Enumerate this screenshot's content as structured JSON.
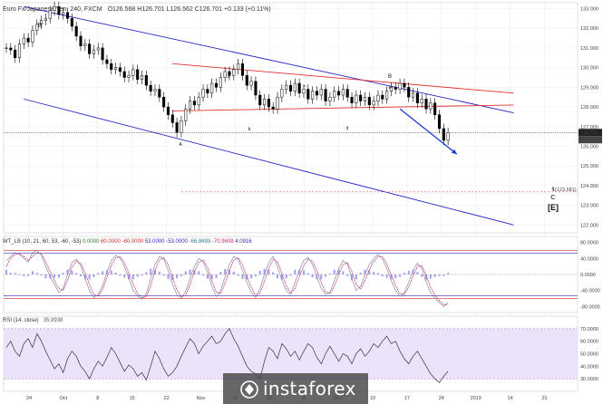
{
  "header": {
    "symbol": "Euro Fx/Japanese Yen, 240, FXCM",
    "ohlc": "O126.568  H126.701  L126.562  C126.701  +0.133 (+0.11%)"
  },
  "price_tags": {
    "last": "126.701",
    "countdown": "03:39:16"
  },
  "target_label": "1(123.681)",
  "wt_header": "WT_LB (10, 21, 60, 53, -60, -53)",
  "wt_values": [
    "0.0000",
    "60.0000",
    "-60.0000",
    "53.0000",
    "-53.0000",
    "-66.8693",
    "-70.9608",
    "4.0916"
  ],
  "rsi_header": "RSI (14, close)",
  "rsi_value": "35.9938",
  "watermark": "instaforex",
  "colors": {
    "candle": "#000000",
    "channel": "#2323c8",
    "triangle": "#e03030",
    "forecast": "#1a3ccf",
    "wt_line": "#c0306a",
    "wt_fill": "#8888e8",
    "rsi_band": "#ece3fb",
    "rsi_line": "#333333"
  },
  "chart_data": [
    {
      "type": "candlestick",
      "panel": "price",
      "x_tick_labels": [
        "24",
        "Oct",
        "8",
        "15",
        "22",
        "Nov",
        "12",
        "19",
        "26",
        "Dec",
        "10",
        "17",
        "24",
        "2019",
        "14",
        "21"
      ],
      "y_ticks": [
        122.0,
        123.0,
        124.0,
        125.0,
        126.0,
        127.0,
        128.0,
        129.0,
        130.0,
        131.0,
        132.0,
        133.0
      ],
      "ylim": [
        121.6,
        133.3
      ],
      "series": [
        {
          "values": [
            131.0,
            130.9,
            130.5,
            131.2,
            131.5,
            131.3,
            131.9,
            132.2,
            132.4,
            132.5,
            132.9,
            133.1,
            132.7,
            132.8,
            132.5,
            132.1,
            131.6,
            131.1,
            131.2,
            130.7,
            130.9,
            131.0,
            130.4,
            130.2,
            129.9,
            130.0,
            129.8,
            129.5,
            129.6,
            129.9,
            129.4,
            129.6,
            129.1,
            128.8,
            128.9,
            128.5,
            128.0,
            127.6,
            127.2,
            126.7,
            127.3,
            127.9,
            128.3,
            128.1,
            128.5,
            128.9,
            128.7,
            129.2,
            129.0,
            129.5,
            129.8,
            129.6,
            129.9,
            130.2,
            129.6,
            129.1,
            129.3,
            128.6,
            128.1,
            128.4,
            128.0,
            127.9,
            128.5,
            128.9,
            129.1,
            128.8,
            129.2,
            128.7,
            128.9,
            128.4,
            128.8,
            128.6,
            128.9,
            128.3,
            128.5,
            128.8,
            128.6,
            128.9,
            128.5,
            128.2,
            128.6,
            128.3,
            128.5,
            128.1,
            128.3,
            128.6,
            128.4,
            128.8,
            129.0,
            128.9,
            129.2,
            129.0,
            128.5,
            128.7,
            128.2,
            128.4,
            127.9,
            128.2,
            127.6,
            126.9,
            126.3,
            126.7
          ]
        }
      ],
      "annotations": [
        "B",
        "a",
        "A",
        "b",
        "c",
        "B",
        "e",
        "d",
        "c",
        "C",
        "[E]"
      ],
      "overlays": {
        "upper_channel": {
          "from": [
            4,
            133.1
          ],
          "to": [
            116,
            127.7
          ]
        },
        "lower_channel": {
          "from": [
            4,
            128.4
          ],
          "to": [
            116,
            122.0
          ]
        },
        "triangle_upper": {
          "from": [
            38,
            130.2
          ],
          "to": [
            116,
            128.7
          ]
        },
        "triangle_lower": {
          "from": [
            38,
            127.8
          ],
          "to": [
            116,
            128.1
          ]
        },
        "forecast_arrow": {
          "from": [
            90,
            127.9
          ],
          "to": [
            103,
            125.6
          ]
        },
        "last_price": 126.701,
        "target_level": 123.681
      }
    },
    {
      "type": "line",
      "panel": "wt",
      "y_tick_labels": [
        "80.0000",
        "40.0000",
        "0.0000",
        "-40.0000",
        "-80.0000"
      ],
      "y_ticks": [
        80,
        40,
        0,
        -40,
        -80
      ],
      "ylim": [
        -95,
        95
      ],
      "levels": [
        60,
        -60,
        53,
        -53,
        0
      ],
      "series": [
        {
          "values": [
            35,
            45,
            55,
            50,
            40,
            30,
            55,
            60,
            48,
            20,
            -5,
            -25,
            -45,
            -35,
            0,
            30,
            38,
            22,
            -10,
            -40,
            -58,
            -50,
            -28,
            5,
            35,
            48,
            40,
            20,
            -10,
            -40,
            -55,
            -62,
            -48,
            -10,
            25,
            45,
            38,
            10,
            -25,
            -50,
            -60,
            -42,
            -10,
            20,
            40,
            32,
            5,
            -30,
            -55,
            -40,
            -5,
            25,
            45,
            38,
            10,
            -20,
            -45,
            -58,
            -35,
            0,
            30,
            45,
            20,
            -15,
            -40,
            -50,
            -20,
            10,
            35,
            42,
            25,
            -5,
            -35,
            -50,
            -45,
            -15,
            15,
            35,
            25,
            -10,
            -40,
            -30,
            0,
            25,
            40,
            50,
            38,
            15,
            -15,
            -40,
            -55,
            -45,
            -20,
            10,
            28,
            15,
            -20,
            -45,
            -60,
            -70,
            -80,
            -70
          ]
        },
        {
          "values": [
            20,
            40,
            50,
            52,
            45,
            35,
            45,
            55,
            52,
            32,
            8,
            -15,
            -35,
            -40,
            -15,
            18,
            34,
            28,
            5,
            -25,
            -50,
            -54,
            -38,
            -8,
            22,
            42,
            44,
            30,
            5,
            -25,
            -48,
            -58,
            -55,
            -28,
            10,
            36,
            42,
            24,
            -8,
            -38,
            -55,
            -52,
            -25,
            6,
            30,
            36,
            18,
            -15,
            -44,
            -48,
            -22,
            10,
            36,
            42,
            24,
            -5,
            -33,
            -52,
            -47,
            -17,
            15,
            38,
            32,
            2,
            -28,
            -46,
            -35,
            -5,
            22,
            38,
            34,
            10,
            -20,
            -43,
            -48,
            -30,
            0,
            25,
            30,
            8,
            -25,
            -36,
            -15,
            12,
            32,
            45,
            44,
            26,
            0,
            -28,
            -48,
            -50,
            -32,
            -5,
            20,
            22,
            -2,
            -32,
            -52,
            -65,
            -75,
            -75
          ]
        }
      ]
    },
    {
      "type": "line",
      "panel": "rsi",
      "ylim": [
        20,
        80
      ],
      "y_tick_labels": [
        "70.0000",
        "60.0000",
        "50.0000",
        "40.0000",
        "30.0000"
      ],
      "y_ticks": [
        70,
        60,
        50,
        40,
        30
      ],
      "band": [
        30,
        70
      ],
      "series": [
        {
          "values": [
            55,
            60,
            52,
            48,
            58,
            62,
            55,
            66,
            60,
            52,
            45,
            38,
            42,
            35,
            46,
            52,
            48,
            40,
            36,
            30,
            38,
            44,
            40,
            47,
            55,
            50,
            43,
            36,
            41,
            38,
            32,
            35,
            29,
            40,
            52,
            46,
            38,
            32,
            35,
            40,
            48,
            55,
            62,
            58,
            50,
            56,
            60,
            64,
            58,
            60,
            66,
            70,
            62,
            56,
            48,
            40,
            36,
            34,
            30,
            44,
            55,
            52,
            46,
            58,
            54,
            48,
            52,
            45,
            52,
            58,
            55,
            47,
            42,
            50,
            56,
            50,
            44,
            50,
            48,
            42,
            50,
            54,
            48,
            52,
            58,
            55,
            60,
            64,
            58,
            60,
            52,
            46,
            42,
            48,
            52,
            46,
            40,
            34,
            30,
            27,
            32,
            36
          ]
        }
      ]
    }
  ],
  "time_axis": {
    "labels": [
      "24",
      "Oct",
      "8",
      "15",
      "22",
      "Nov",
      "12",
      "19",
      "26",
      "Dec",
      "10",
      "17",
      "24",
      "2019",
      "14",
      "21"
    ]
  }
}
